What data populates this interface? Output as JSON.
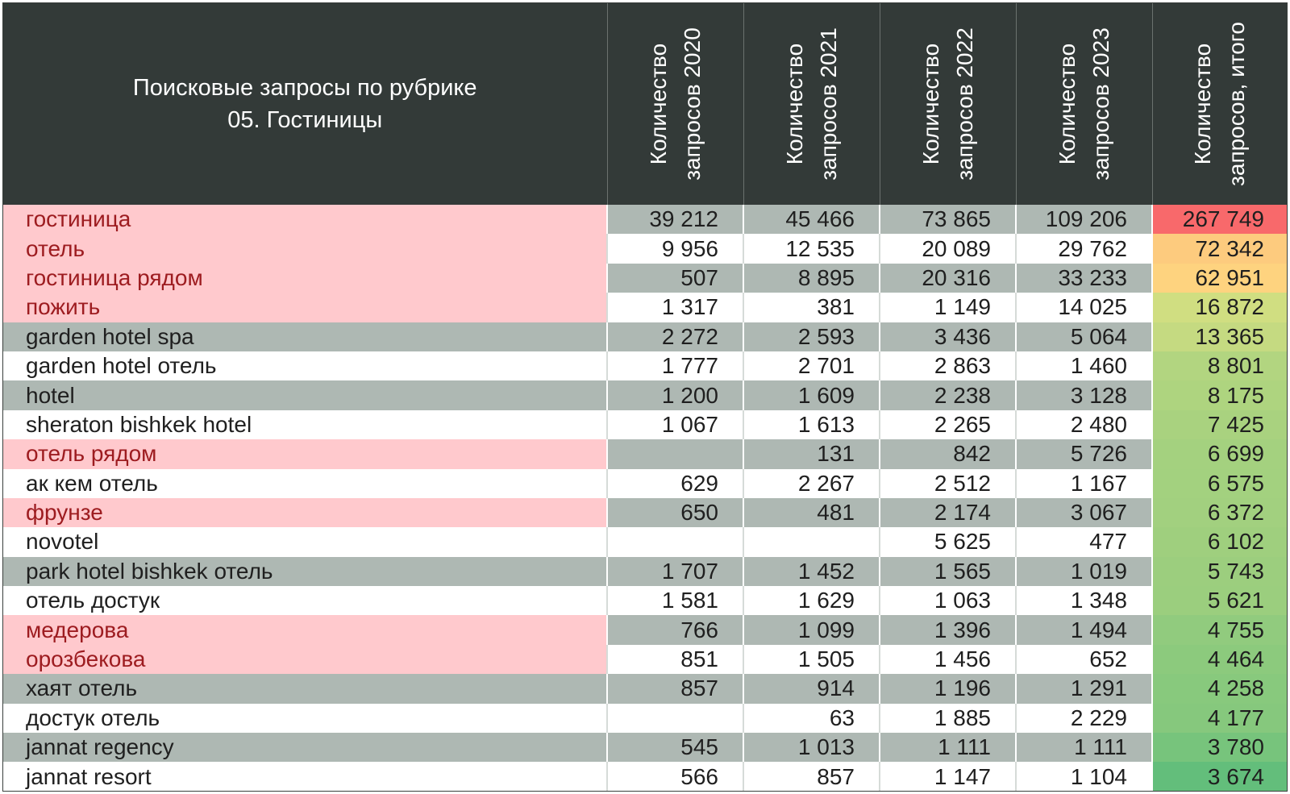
{
  "chart_data": {
    "type": "table",
    "title_lines": [
      "Поисковые запросы по рубрике",
      "05. Гостиницы"
    ],
    "columns": [
      {
        "line1": "Количество",
        "line2": "запросов 2020"
      },
      {
        "line1": "Количество",
        "line2": "запросов 2021"
      },
      {
        "line1": "Количество",
        "line2": "запросов 2022"
      },
      {
        "line1": "Количество",
        "line2": "запросов 2023"
      },
      {
        "line1": "Количество",
        "line2": "запросов, итого"
      }
    ],
    "rows": [
      {
        "query": "гостиница",
        "highlight": true,
        "band": true,
        "y2020": "39 212",
        "y2021": "45 466",
        "y2022": "73 865",
        "y2023": "109 206",
        "total": "267 749",
        "total_value": 267749
      },
      {
        "query": "отель",
        "highlight": true,
        "band": false,
        "y2020": "9 956",
        "y2021": "12 535",
        "y2022": "20 089",
        "y2023": "29 762",
        "total": "72 342",
        "total_value": 72342
      },
      {
        "query": "гостиница рядом",
        "highlight": true,
        "band": true,
        "y2020": "507",
        "y2021": "8 895",
        "y2022": "20 316",
        "y2023": "33 233",
        "total": "62 951",
        "total_value": 62951
      },
      {
        "query": "пожить",
        "highlight": true,
        "band": false,
        "y2020": "1 317",
        "y2021": "381",
        "y2022": "1 149",
        "y2023": "14 025",
        "total": "16 872",
        "total_value": 16872
      },
      {
        "query": "garden hotel spa",
        "highlight": false,
        "band": true,
        "y2020": "2 272",
        "y2021": "2 593",
        "y2022": "3 436",
        "y2023": "5 064",
        "total": "13 365",
        "total_value": 13365
      },
      {
        "query": "garden hotel отель",
        "highlight": false,
        "band": false,
        "y2020": "1 777",
        "y2021": "2 701",
        "y2022": "2 863",
        "y2023": "1 460",
        "total": "8 801",
        "total_value": 8801
      },
      {
        "query": "hotel",
        "highlight": false,
        "band": true,
        "y2020": "1 200",
        "y2021": "1 609",
        "y2022": "2 238",
        "y2023": "3 128",
        "total": "8 175",
        "total_value": 8175
      },
      {
        "query": "sheraton bishkek hotel",
        "highlight": false,
        "band": false,
        "y2020": "1 067",
        "y2021": "1 613",
        "y2022": "2 265",
        "y2023": "2 480",
        "total": "7 425",
        "total_value": 7425
      },
      {
        "query": "отель рядом",
        "highlight": true,
        "band": true,
        "y2020": "",
        "y2021": "131",
        "y2022": "842",
        "y2023": "5 726",
        "total": "6 699",
        "total_value": 6699
      },
      {
        "query": "ак кем отель",
        "highlight": false,
        "band": false,
        "y2020": "629",
        "y2021": "2 267",
        "y2022": "2 512",
        "y2023": "1 167",
        "total": "6 575",
        "total_value": 6575
      },
      {
        "query": "фрунзе",
        "highlight": true,
        "band": true,
        "y2020": "650",
        "y2021": "481",
        "y2022": "2 174",
        "y2023": "3 067",
        "total": "6 372",
        "total_value": 6372
      },
      {
        "query": "novotel",
        "highlight": false,
        "band": false,
        "y2020": "",
        "y2021": "",
        "y2022": "5 625",
        "y2023": "477",
        "total": "6 102",
        "total_value": 6102
      },
      {
        "query": "park hotel bishkek отель",
        "highlight": false,
        "band": true,
        "y2020": "1 707",
        "y2021": "1 452",
        "y2022": "1 565",
        "y2023": "1 019",
        "total": "5 743",
        "total_value": 5743
      },
      {
        "query": "отель достук",
        "highlight": false,
        "band": false,
        "y2020": "1 581",
        "y2021": "1 629",
        "y2022": "1 063",
        "y2023": "1 348",
        "total": "5 621",
        "total_value": 5621
      },
      {
        "query": "медерова",
        "highlight": true,
        "band": true,
        "y2020": "766",
        "y2021": "1 099",
        "y2022": "1 396",
        "y2023": "1 494",
        "total": "4 755",
        "total_value": 4755
      },
      {
        "query": "орозбекова",
        "highlight": true,
        "band": false,
        "y2020": "851",
        "y2021": "1 505",
        "y2022": "1 456",
        "y2023": "652",
        "total": "4 464",
        "total_value": 4464
      },
      {
        "query": "хаят отель",
        "highlight": false,
        "band": true,
        "y2020": "857",
        "y2021": "914",
        "y2022": "1 196",
        "y2023": "1 291",
        "total": "4 258",
        "total_value": 4258
      },
      {
        "query": "достук отель",
        "highlight": false,
        "band": false,
        "y2020": "",
        "y2021": "63",
        "y2022": "1 885",
        "y2023": "2 229",
        "total": "4 177",
        "total_value": 4177
      },
      {
        "query": "jannat regency",
        "highlight": false,
        "band": true,
        "y2020": "545",
        "y2021": "1 013",
        "y2022": "1 111",
        "y2023": "1 111",
        "total": "3 780",
        "total_value": 3780
      },
      {
        "query": "jannat resort",
        "highlight": false,
        "band": false,
        "y2020": "566",
        "y2021": "857",
        "y2022": "1 147",
        "y2023": "1 104",
        "total": "3 674",
        "total_value": 3674
      }
    ],
    "total_color_scale": {
      "type": "color-scale",
      "low": "#63be7b",
      "mid": "#ffeb84",
      "high": "#f8696b"
    }
  }
}
